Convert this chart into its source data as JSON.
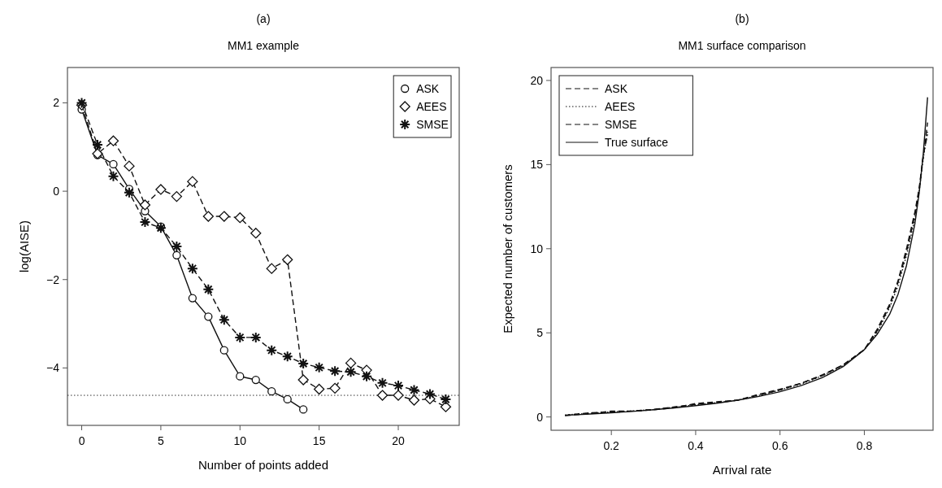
{
  "chart_data": [
    {
      "type": "line",
      "title": "MM1 example",
      "xlabel": "Number of points added",
      "ylabel": "log(AISE)",
      "annotations": [
        "(a)"
      ],
      "x": [
        0,
        1,
        2,
        3,
        4,
        5,
        6,
        7,
        8,
        9,
        10,
        11,
        12,
        13,
        14,
        15,
        16,
        17,
        18,
        19,
        20,
        21,
        22,
        23
      ],
      "series": [
        {
          "name": "ASK",
          "color": "#111111",
          "marker": "circle",
          "line_style": "solid",
          "values": [
            1.85,
            0.82,
            0.61,
            0.05,
            -0.45,
            -0.8,
            -1.45,
            -2.42,
            -2.84,
            -3.6,
            -4.19,
            -4.27,
            -4.53,
            -4.71,
            -4.94,
            null,
            null,
            null,
            null,
            null,
            null,
            null,
            null,
            null
          ]
        },
        {
          "name": "AEES",
          "color": "#111111",
          "marker": "diamond",
          "line_style": "dashed",
          "values": [
            1.95,
            0.85,
            1.14,
            0.57,
            -0.31,
            0.04,
            -0.12,
            0.22,
            -0.57,
            -0.57,
            -0.6,
            -0.95,
            -1.75,
            -1.55,
            -4.27,
            -4.48,
            -4.46,
            -3.89,
            -4.05,
            -4.62,
            -4.62,
            -4.73,
            -4.7,
            -4.88
          ]
        },
        {
          "name": "SMSE",
          "color": "#111111",
          "marker": "cross",
          "line_style": "dashed",
          "values": [
            2.0,
            1.05,
            0.34,
            -0.03,
            -0.7,
            -0.83,
            -1.25,
            -1.75,
            -2.22,
            -2.91,
            -3.31,
            -3.31,
            -3.6,
            -3.74,
            -3.9,
            -3.99,
            -4.07,
            -4.09,
            -4.19,
            -4.34,
            -4.4,
            -4.5,
            -4.59,
            -4.71
          ]
        }
      ],
      "ref_lines": [
        {
          "axis": "y",
          "value": -4.62,
          "line_style": "dotted",
          "color": "#333333"
        }
      ],
      "xlim": [
        -0.9,
        23.85
      ],
      "ylim": [
        -5.3,
        2.8
      ],
      "xticks": [
        0,
        5,
        10,
        15,
        20
      ],
      "yticks": [
        {
          "value": -4,
          "label": "−4"
        },
        {
          "value": -2,
          "label": "−2"
        },
        0,
        2
      ],
      "grid": false,
      "legend": "top right"
    },
    {
      "type": "line",
      "title": "MM1 surface comparison",
      "xlabel": "Arrival rate",
      "ylabel": "Expected number of customers",
      "annotations": [
        "(b)"
      ],
      "x": [
        0.09,
        0.15,
        0.2,
        0.25,
        0.3,
        0.35,
        0.4,
        0.45,
        0.5,
        0.55,
        0.6,
        0.65,
        0.7,
        0.75,
        0.8,
        0.83,
        0.86,
        0.88,
        0.9,
        0.92,
        0.93,
        0.94,
        0.95
      ],
      "series": [
        {
          "name": "ASK",
          "color": "#111111",
          "marker": "none",
          "line_style": "dashed",
          "values": [
            0.1,
            0.25,
            0.3,
            0.35,
            0.45,
            0.6,
            0.75,
            0.85,
            1.0,
            1.3,
            1.6,
            2.0,
            2.45,
            3.1,
            4.0,
            5.1,
            6.6,
            8.0,
            9.8,
            12.0,
            13.5,
            15.5,
            17.5
          ]
        },
        {
          "name": "AEES",
          "color": "#111111",
          "marker": "none",
          "line_style": "dotted",
          "values": [
            0.12,
            0.22,
            0.3,
            0.36,
            0.44,
            0.58,
            0.72,
            0.85,
            1.0,
            1.28,
            1.6,
            1.95,
            2.45,
            3.05,
            4.0,
            5.0,
            6.5,
            7.8,
            9.6,
            11.8,
            13.4,
            15.4,
            17.0
          ]
        },
        {
          "name": "SMSE",
          "color": "#111111",
          "marker": "none",
          "line_style": "dashed",
          "values": [
            0.08,
            0.2,
            0.35,
            0.35,
            0.42,
            0.55,
            0.8,
            0.9,
            1.0,
            1.35,
            1.65,
            2.0,
            2.5,
            3.1,
            4.0,
            5.2,
            6.7,
            8.1,
            10.0,
            12.2,
            13.6,
            15.6,
            16.8
          ]
        },
        {
          "name": "True surface",
          "color": "#111111",
          "marker": "none",
          "line_style": "solid",
          "values": [
            0.1,
            0.18,
            0.25,
            0.33,
            0.43,
            0.54,
            0.67,
            0.82,
            1.0,
            1.22,
            1.5,
            1.86,
            2.33,
            3.0,
            4.0,
            4.9,
            6.1,
            7.3,
            9.0,
            11.5,
            13.3,
            15.7,
            19.0
          ]
        }
      ],
      "xlim": [
        0.057,
        0.963
      ],
      "ylim": [
        -0.79,
        20.77
      ],
      "xticks": [
        0.2,
        0.4,
        0.6,
        0.8
      ],
      "yticks": [
        0,
        5,
        10,
        15,
        20
      ],
      "grid": false,
      "legend": "top left"
    }
  ]
}
